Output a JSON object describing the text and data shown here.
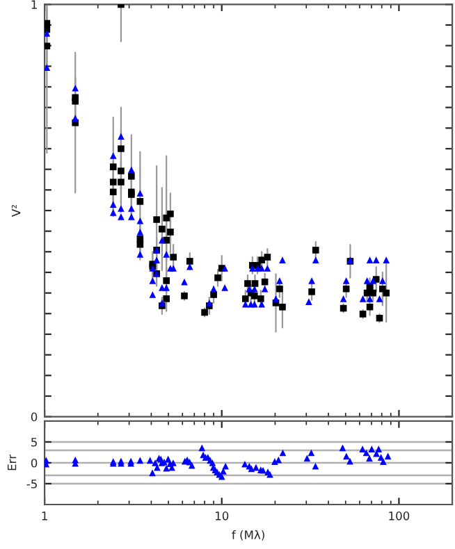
{
  "chart_data": [
    {
      "type": "scatter",
      "ylabel": "V²",
      "log": "x",
      "xlim": [
        1,
        200
      ],
      "ylim": [
        0,
        1
      ],
      "tick_labels": "y",
      "xticks": [
        {
          "value": 1,
          "label": null
        },
        {
          "value": 10,
          "label": null
        },
        {
          "value": 100,
          "label": null
        }
      ],
      "yticks": [
        0,
        {
          "value": 0.05,
          "label": null
        },
        {
          "value": 0.1,
          "label": null
        },
        {
          "value": 0.15,
          "label": null
        },
        {
          "value": 0.2,
          "label": null
        },
        {
          "value": 0.25,
          "label": null
        },
        {
          "value": 0.3,
          "label": null
        },
        {
          "value": 0.35,
          "label": null
        },
        {
          "value": 0.4,
          "label": null
        },
        {
          "value": 0.45,
          "label": null
        },
        {
          "value": 0.5,
          "label": null
        },
        {
          "value": 0.55,
          "label": null
        },
        {
          "value": 0.6,
          "label": null
        },
        {
          "value": 0.65,
          "label": null
        },
        {
          "value": 0.7,
          "label": null
        },
        {
          "value": 0.75,
          "label": null
        },
        {
          "value": 0.8,
          "label": null
        },
        {
          "value": 0.85,
          "label": null
        },
        {
          "value": 0.9,
          "label": null
        },
        {
          "value": 0.95,
          "label": null
        },
        1
      ],
      "series": [
        {
          "color": "#000000",
          "marker": "square",
          "x": [
            1.03,
            1.03,
            1.03,
            1.49,
            1.49,
            1.49,
            2.44,
            2.44,
            2.44,
            2.7,
            2.7,
            2.7,
            2.7,
            3.09,
            3.09,
            3.09,
            3.46,
            3.46,
            3.46,
            4.07,
            4.07,
            4.29,
            4.29,
            4.29,
            4.6,
            4.6,
            4.87,
            4.87,
            4.87,
            4.87,
            5.13,
            5.13,
            5.33,
            6.15,
            6.6,
            8.0,
            8.5,
            9.0,
            9.5,
            10.0,
            13.6,
            14.0,
            14.6,
            14.9,
            15.3,
            15.4,
            15.9,
            16.6,
            16.8,
            17.5,
            18.1,
            20.2,
            21.2,
            22.0,
            32.2,
            33.9,
            48.6,
            50.4,
            53.1,
            62.6,
            66.1,
            68.5,
            68.5,
            71.4,
            74.4,
            77.7,
            80.8,
            84.8
          ],
          "values": [
            0.954,
            0.939,
            0.899,
            0.774,
            0.765,
            0.713,
            0.606,
            0.569,
            0.545,
            1.0,
            0.65,
            0.596,
            0.569,
            0.583,
            0.545,
            0.539,
            0.522,
            0.431,
            0.418,
            0.37,
            0.364,
            0.478,
            0.404,
            0.347,
            0.455,
            0.269,
            0.482,
            0.428,
            0.33,
            0.286,
            0.492,
            0.448,
            0.387,
            0.293,
            0.377,
            0.253,
            0.269,
            0.296,
            0.337,
            0.36,
            0.286,
            0.323,
            0.3,
            0.367,
            0.293,
            0.323,
            0.367,
            0.286,
            0.38,
            0.327,
            0.387,
            0.276,
            0.31,
            0.266,
            0.303,
            0.404,
            0.263,
            0.31,
            0.377,
            0.249,
            0.3,
            0.316,
            0.266,
            0.3,
            0.333,
            0.239,
            0.31,
            0.3
          ],
          "errors": [
            [
              0.64,
              1.0
            ],
            0.05,
            0.05,
            0.05,
            0.05,
            0.17,
            0.12,
            0.05,
            0.05,
            [
              0.91,
              1.0
            ],
            0.1,
            0.1,
            0.05,
            0.1,
            0.05,
            0.05,
            0.12,
            0.05,
            0.03,
            0.03,
            0.03,
            0.13,
            0.03,
            0.03,
            0.1,
            0.02,
            0.15,
            0.05,
            0.03,
            0.03,
            0.05,
            0.05,
            0.03,
            0.01,
            0.02,
            0.01,
            0.02,
            0.02,
            0.02,
            0.03,
            0.02,
            0.02,
            0.02,
            0.02,
            0.02,
            0.02,
            0.02,
            0.02,
            0.02,
            0.02,
            0.02,
            0.07,
            0.02,
            0.05,
            0.02,
            0.02,
            0.01,
            0.02,
            0.04,
            0.01,
            0.02,
            0.02,
            0.02,
            0.02,
            0.03,
            0.01,
            0.04,
            0.07
          ]
        },
        {
          "color": "#0000ff",
          "marker": "triangle",
          "x": [
            1.03,
            1.03,
            1.49,
            1.49,
            2.44,
            2.44,
            2.44,
            2.7,
            2.7,
            2.7,
            3.09,
            3.09,
            3.09,
            3.46,
            3.46,
            3.46,
            3.46,
            4.07,
            4.07,
            4.07,
            4.29,
            4.29,
            4.29,
            4.6,
            4.6,
            4.6,
            4.87,
            4.87,
            5.13,
            5.33,
            6.15,
            6.6,
            8.5,
            9.0,
            10.4,
            10.4,
            13.6,
            14.6,
            15.3,
            16.8,
            14.3,
            15.3,
            17.5,
            14.9,
            15.9,
            16.8,
            18.1,
            20.2,
            21.2,
            22.0,
            31.0,
            32.2,
            33.9,
            48.6,
            50.4,
            53.1,
            62.6,
            66.1,
            68.5,
            71.4,
            74.4,
            77.7,
            80.8,
            84.8,
            68.5
          ],
          "values": [
            0.93,
            0.847,
            0.797,
            0.724,
            0.633,
            0.515,
            0.495,
            0.68,
            0.505,
            0.485,
            0.599,
            0.505,
            0.485,
            0.542,
            0.475,
            0.448,
            0.394,
            0.36,
            0.33,
            0.296,
            0.404,
            0.38,
            0.347,
            0.428,
            0.313,
            0.276,
            0.394,
            0.313,
            0.36,
            0.36,
            0.327,
            0.364,
            0.276,
            0.31,
            0.36,
            0.313,
            0.273,
            0.273,
            0.273,
            0.273,
            0.31,
            0.31,
            0.31,
            0.36,
            0.36,
            0.36,
            0.36,
            0.286,
            0.33,
            0.38,
            0.279,
            0.33,
            0.38,
            0.286,
            0.33,
            0.38,
            0.286,
            0.33,
            0.38,
            0.33,
            0.38,
            0.286,
            0.33,
            0.38,
            0.286
          ]
        }
      ]
    },
    {
      "type": "scatter",
      "xlabel": "f (Mλ)",
      "ylabel": "Err",
      "log": "x",
      "xlim": [
        1,
        200
      ],
      "ylim": [
        -10,
        10
      ],
      "xticks": [
        1,
        10,
        100
      ],
      "yticks": [
        5,
        0,
        -5
      ],
      "ref_lines": [
        {
          "axis": "y",
          "value": 5,
          "color": "#b0b0b0"
        },
        {
          "axis": "y",
          "value": 3,
          "color": "#b0b0b0"
        },
        {
          "axis": "y",
          "value": 0,
          "color": "#b0b0b0"
        },
        {
          "axis": "y",
          "value": -3,
          "color": "#b0b0b0"
        },
        {
          "axis": "y",
          "value": -5,
          "color": "#b0b0b0"
        }
      ],
      "series": [
        {
          "color": "#0000ff",
          "marker": "triangle",
          "x": [
            1.02,
            1.02,
            1.49,
            1.49,
            2.44,
            2.44,
            2.7,
            2.7,
            3.07,
            3.07,
            3.46,
            3.94,
            4.06,
            4.21,
            4.32,
            4.42,
            4.53,
            4.59,
            4.73,
            4.87,
            4.98,
            5.11,
            5.23,
            5.32,
            6.19,
            6.38,
            6.58,
            6.78,
            7.73,
            7.86,
            8.1,
            8.35,
            8.6,
            8.86,
            8.96,
            9.18,
            9.41,
            9.69,
            10.0,
            10.2,
            10.5,
            13.5,
            14.3,
            14.7,
            15.6,
            16.6,
            17.1,
            18.2,
            18.7,
            19.9,
            20.9,
            22.1,
            30.3,
            32.0,
            33.8,
            48.1,
            50.5,
            52.9,
            62.3,
            65.4,
            68.1,
            70.2,
            74.6,
            76.8,
            79.2,
            81.6,
            86.7
          ],
          "values": [
            0.6,
            -0.3,
            0.7,
            -0.1,
            0.3,
            -0.1,
            0.4,
            -0.1,
            0.4,
            -0.1,
            0.6,
            0.6,
            -2.4,
            0,
            -1.1,
            1.1,
            0.9,
            0,
            0.2,
            -1.3,
            0.9,
            -0.2,
            -1.1,
            0,
            0.4,
            0.7,
            0.2,
            -0.6,
            3.6,
            1.9,
            1.3,
            1.3,
            0.6,
            0,
            -1.1,
            -1.7,
            -2.2,
            -2.8,
            -3.3,
            -2.0,
            -0.8,
            -0.3,
            -0.8,
            -1.4,
            -1.1,
            -1.7,
            -1.8,
            -2.2,
            -2.8,
            0.3,
            0.7,
            2.4,
            1.1,
            2.4,
            -0.8,
            3.6,
            1.6,
            0.4,
            3.3,
            2.4,
            1.1,
            3.3,
            2.2,
            3.3,
            1.3,
            0.3,
            1.6
          ]
        }
      ]
    }
  ]
}
